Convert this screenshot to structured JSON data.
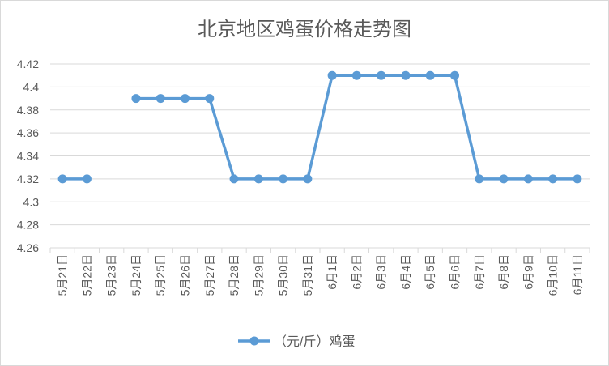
{
  "chart_data": {
    "type": "line",
    "title": "北京地区鸡蛋价格走势图",
    "xlabel": "",
    "ylabel": "",
    "categories": [
      "5月21日",
      "5月22日",
      "5月23日",
      "5月24日",
      "5月25日",
      "5月26日",
      "5月27日",
      "5月28日",
      "5月29日",
      "5月30日",
      "5月31日",
      "6月1日",
      "6月2日",
      "6月3日",
      "6月4日",
      "6月5日",
      "6月6日",
      "6月7日",
      "6月8日",
      "6月9日",
      "6月10日",
      "6月11日"
    ],
    "series": [
      {
        "name": "（元/斤）鸡蛋",
        "values": [
          4.32,
          4.32,
          null,
          4.39,
          4.39,
          4.39,
          4.39,
          4.32,
          4.32,
          4.32,
          4.32,
          4.41,
          4.41,
          4.41,
          4.41,
          4.41,
          4.41,
          4.32,
          4.32,
          4.32,
          4.32,
          4.32
        ]
      }
    ],
    "ylim": [
      4.26,
      4.42
    ],
    "yticks": [
      "4.26",
      "4.28",
      "4.3",
      "4.32",
      "4.34",
      "4.36",
      "4.38",
      "4.4",
      "4.42"
    ],
    "grid": true,
    "legend": "bottom",
    "colors": {
      "series": "#5b9bd5",
      "grid": "#d9d9d9",
      "text": "#595959"
    }
  }
}
